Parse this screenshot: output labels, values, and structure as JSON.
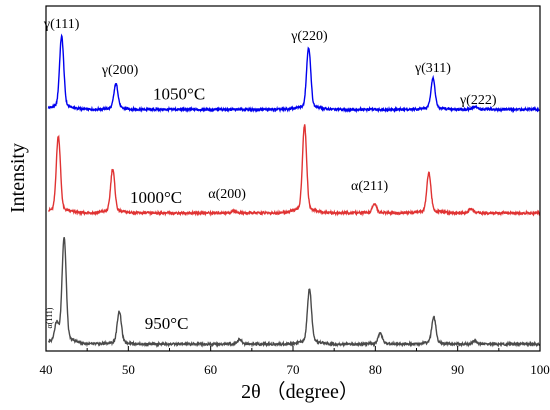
{
  "chart_data": {
    "type": "line",
    "title": "",
    "xlabel": "2θ （degree）",
    "ylabel": "Intensity",
    "xlim": [
      40,
      100
    ],
    "ylim": [
      0,
      1
    ],
    "x_ticks": [
      40,
      50,
      60,
      70,
      80,
      90,
      100
    ],
    "y_ticks_shown": false,
    "grid": false,
    "legend": "none",
    "series": [
      {
        "name": "1050°C",
        "color": "#0000ee",
        "peaks": [
          {
            "x": 41.9,
            "height": 0.2,
            "label": "γ(111)"
          },
          {
            "x": 48.5,
            "height": 0.07,
            "label": "γ(200)"
          },
          {
            "x": 71.9,
            "height": 0.17,
            "label": "γ(220)"
          },
          {
            "x": 87.0,
            "height": 0.085,
            "label": "γ(311)"
          },
          {
            "x": 92.1,
            "height": 0.008,
            "label": "γ(222)"
          }
        ]
      },
      {
        "name": "1000°C",
        "color": "#e03333",
        "peaks": [
          {
            "x": 41.5,
            "height": 0.21,
            "label": ""
          },
          {
            "x": 48.1,
            "height": 0.12,
            "label": ""
          },
          {
            "x": 62.8,
            "height": 0.006,
            "label": "α(200)"
          },
          {
            "x": 71.4,
            "height": 0.24,
            "label": ""
          },
          {
            "x": 79.9,
            "height": 0.025,
            "label": "α(211)"
          },
          {
            "x": 86.5,
            "height": 0.11,
            "label": ""
          },
          {
            "x": 91.6,
            "height": 0.011,
            "label": ""
          }
        ]
      },
      {
        "name": "950°C",
        "color": "#4a4a4a",
        "peaks": [
          {
            "x": 41.3,
            "height": 0.05,
            "label": "α(111)"
          },
          {
            "x": 42.2,
            "height": 0.29,
            "label": ""
          },
          {
            "x": 48.9,
            "height": 0.09,
            "label": ""
          },
          {
            "x": 63.5,
            "height": 0.013,
            "label": ""
          },
          {
            "x": 72.0,
            "height": 0.15,
            "label": ""
          },
          {
            "x": 80.6,
            "height": 0.03,
            "label": ""
          },
          {
            "x": 87.1,
            "height": 0.075,
            "label": ""
          },
          {
            "x": 92.1,
            "height": 0.008,
            "label": ""
          }
        ]
      }
    ]
  }
}
